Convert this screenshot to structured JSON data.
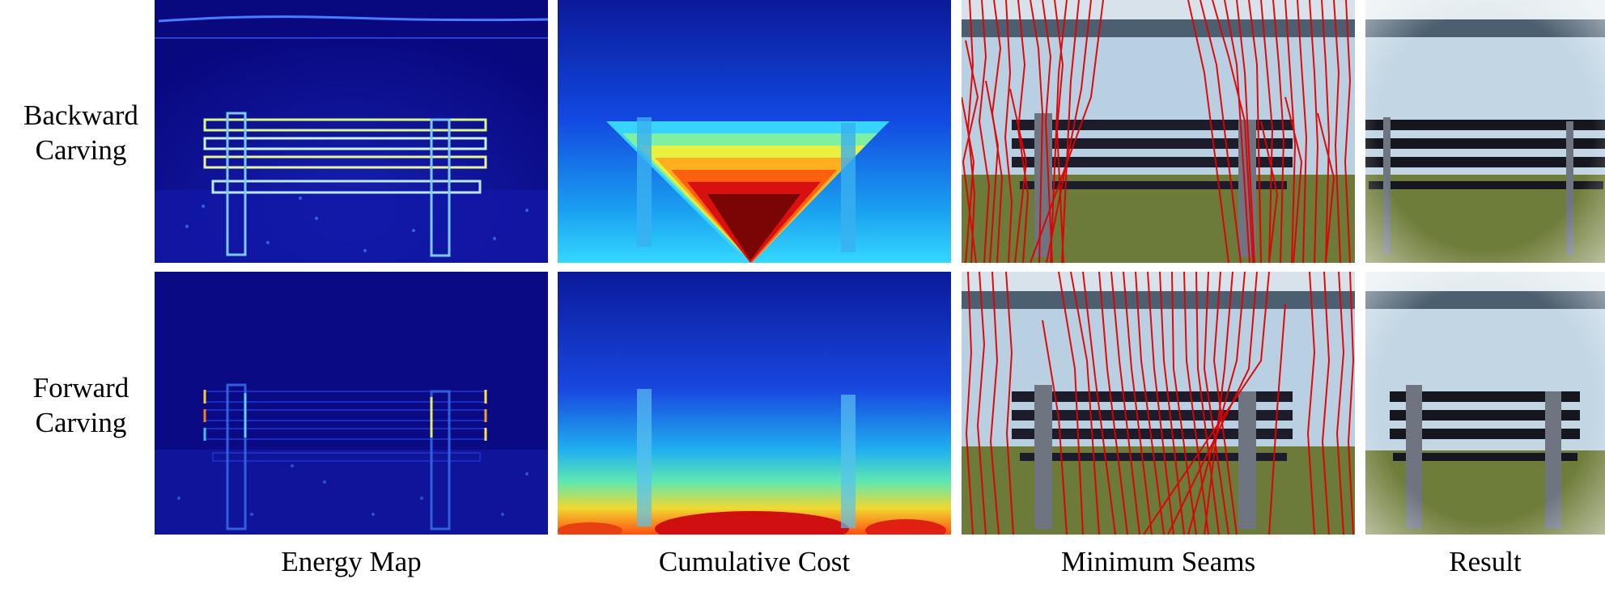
{
  "rows": [
    {
      "line1": "Backward",
      "line2": "Carving"
    },
    {
      "line1": "Forward",
      "line2": "Carving"
    }
  ],
  "columns": [
    "Energy Map",
    "Cumulative Cost",
    "Minimum Seams",
    "Result"
  ],
  "colors": {
    "energy_background": "#0a0a8c",
    "seam_color": "#e00000",
    "sky": "#c8d8e6",
    "lake": "#b6cfe0",
    "grass": "#6f7d3a",
    "bench_slat": "#1c1c2a"
  }
}
